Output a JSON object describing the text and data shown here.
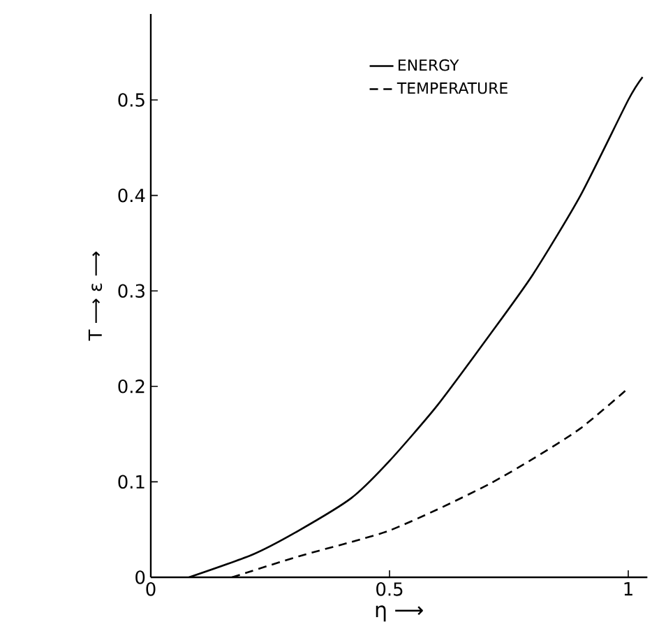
{
  "chart_data": {
    "type": "line",
    "xlabel": "η ⟶",
    "ylabel": "T ⟶  ε ⟶",
    "xlim": [
      0,
      1.04
    ],
    "ylim": [
      0,
      0.59
    ],
    "xticks": [
      0,
      0.5,
      1
    ],
    "yticks": [
      0,
      0.1,
      0.2,
      0.3,
      0.4,
      0.5
    ],
    "grid": false,
    "legend": "top",
    "marker": "none",
    "series": [
      {
        "name": "ENERGY",
        "color": "#000000",
        "line_style": "solid",
        "x": [
          0.08,
          0.214,
          0.31,
          0.42,
          0.5,
          0.6,
          0.71,
          0.8,
          0.9,
          1.0,
          1.03
        ],
        "values": [
          0.0,
          0.024,
          0.049,
          0.083,
          0.122,
          0.18,
          0.254,
          0.317,
          0.4,
          0.5,
          0.524
        ]
      },
      {
        "name": "TEMPERATURE",
        "color": "#000000",
        "line_style": "dashed",
        "x": [
          0.17,
          0.31,
          0.42,
          0.5,
          0.6,
          0.71,
          0.8,
          0.9,
          1.0
        ],
        "values": [
          0.0,
          0.022,
          0.037,
          0.049,
          0.071,
          0.098,
          0.124,
          0.156,
          0.198
        ]
      }
    ]
  }
}
